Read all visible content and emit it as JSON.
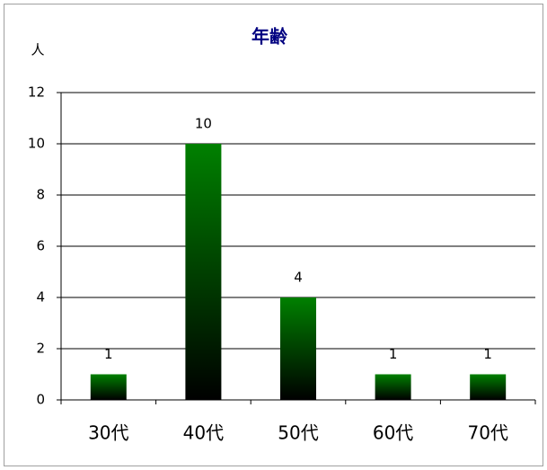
{
  "chart_data": {
    "type": "bar",
    "title": "年齢",
    "y_label": "人",
    "categories": [
      "30代",
      "40代",
      "50代",
      "60代",
      "70代"
    ],
    "values": [
      1,
      10,
      4,
      1,
      1
    ],
    "color": "#008000",
    "ylim": [
      0,
      12
    ],
    "yticks": [
      0,
      2,
      4,
      6,
      8,
      10,
      12
    ],
    "grid": true
  }
}
